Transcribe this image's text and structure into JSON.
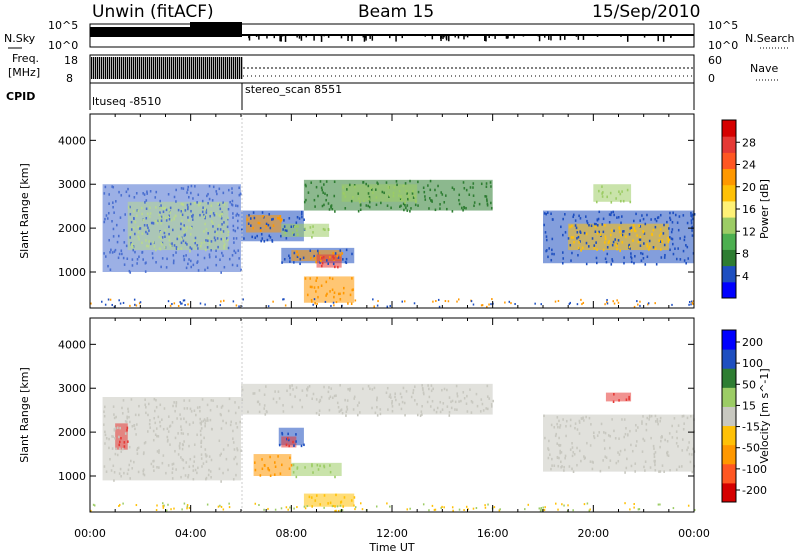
{
  "header": {
    "station": "Unwin (fitACF)",
    "beam": "Beam 15",
    "date": "15/Sep/2010"
  },
  "side_labels": {
    "nsky": "N.Sky",
    "nsearch": "N.Search",
    "freq_line1": "Freq.",
    "freq_line2": "[MHz]",
    "nave": "Nave",
    "cpid": "CPID"
  },
  "noise_axis": {
    "left_ticks": [
      "10^5",
      "10^0"
    ],
    "right_ticks": [
      "10^5",
      "10^0"
    ]
  },
  "freq_axis": {
    "left_ticks": [
      "18",
      "8"
    ],
    "right_ticks": [
      "60",
      "0"
    ]
  },
  "cpid_segments": [
    {
      "label": "ltuseq -8510",
      "start_hour": 0,
      "end_hour": 6
    },
    {
      "label": "stereo_scan 8551",
      "start_hour": 6,
      "end_hour": 24
    }
  ],
  "time_axis": {
    "label": "Time UT",
    "ticks": [
      "00:00",
      "04:00",
      "08:00",
      "12:00",
      "16:00",
      "20:00",
      "00:00"
    ],
    "tick_hours": [
      0,
      4,
      8,
      12,
      16,
      20,
      24
    ]
  },
  "range_axis": {
    "label": "Slant Range [km]",
    "ticks": [
      "1000",
      "2000",
      "3000",
      "4000"
    ],
    "tick_values": [
      1000,
      2000,
      3000,
      4000
    ],
    "range": [
      180,
      4600
    ]
  },
  "chart_data": [
    {
      "type": "heatmap",
      "name": "power",
      "colorbar_label": "Power [dB]",
      "colorbar_ticks": [
        "28",
        "24",
        "20",
        "16",
        "12",
        "8",
        "4"
      ],
      "colorbar_values": [
        28,
        24,
        20,
        16,
        12,
        8,
        4
      ],
      "colorbar_colors": [
        "#0000ff",
        "#1e4fc0",
        "#2e7d32",
        "#4caf50",
        "#9ccc65",
        "#fff176",
        "#ffc107",
        "#ff9800",
        "#ff5722",
        "#e53935",
        "#d50000"
      ],
      "xlim": [
        0,
        24
      ],
      "ylim": [
        180,
        4600
      ],
      "regions": [
        {
          "x": [
            0.5,
            6
          ],
          "y": [
            1000,
            3000
          ],
          "color": "#4a6fd0"
        },
        {
          "x": [
            1.5,
            5.5
          ],
          "y": [
            1500,
            2600
          ],
          "color": "#b8d890"
        },
        {
          "x": [
            6,
            8.5
          ],
          "y": [
            1700,
            2400
          ],
          "color": "#1e4fc0"
        },
        {
          "x": [
            6.2,
            7.6
          ],
          "y": [
            1900,
            2300
          ],
          "color": "#ff9800"
        },
        {
          "x": [
            7.6,
            9.5
          ],
          "y": [
            1800,
            2100
          ],
          "color": "#9ccc65"
        },
        {
          "x": [
            7.6,
            10.5
          ],
          "y": [
            1200,
            1550
          ],
          "color": "#1e4fc0"
        },
        {
          "x": [
            8,
            10
          ],
          "y": [
            1250,
            1500
          ],
          "color": "#ff9800"
        },
        {
          "x": [
            9,
            10
          ],
          "y": [
            1100,
            1400
          ],
          "color": "#e53935"
        },
        {
          "x": [
            8.5,
            10.5
          ],
          "y": [
            300,
            900
          ],
          "color": "#ff9800"
        },
        {
          "x": [
            8.5,
            16
          ],
          "y": [
            2400,
            3100
          ],
          "color": "#2e7d32"
        },
        {
          "x": [
            10,
            13
          ],
          "y": [
            2600,
            3000
          ],
          "color": "#9ccc65"
        },
        {
          "x": [
            18,
            24
          ],
          "y": [
            1200,
            2400
          ],
          "color": "#1e4fc0"
        },
        {
          "x": [
            19,
            23
          ],
          "y": [
            1500,
            2100
          ],
          "color": "#ffc107"
        },
        {
          "x": [
            20,
            21.5
          ],
          "y": [
            2600,
            3000
          ],
          "color": "#9ccc65"
        }
      ]
    },
    {
      "type": "heatmap",
      "name": "velocity",
      "colorbar_label": "Velocity [m s^-1]",
      "colorbar_ticks": [
        "200",
        "100",
        "50",
        "15",
        "-15",
        "-50",
        "-100",
        "-200"
      ],
      "colorbar_values": [
        200,
        100,
        50,
        15,
        -15,
        -50,
        -100,
        -200
      ],
      "colorbar_colors": [
        "#d50000",
        "#ff5722",
        "#ff9800",
        "#ffc107",
        "#c8c8c0",
        "#9ccc65",
        "#2e7d32",
        "#1e4fc0",
        "#0000ff"
      ],
      "xlim": [
        0,
        24
      ],
      "ylim": [
        180,
        4600
      ],
      "regions": [
        {
          "x": [
            0.5,
            6
          ],
          "y": [
            900,
            2800
          ],
          "color": "#c8c8c0"
        },
        {
          "x": [
            6,
            16
          ],
          "y": [
            2400,
            3100
          ],
          "color": "#c8c8c0"
        },
        {
          "x": [
            7.5,
            8.5
          ],
          "y": [
            1700,
            2100
          ],
          "color": "#1e4fc0"
        },
        {
          "x": [
            7.6,
            8.2
          ],
          "y": [
            1650,
            1900
          ],
          "color": "#e53935"
        },
        {
          "x": [
            6.5,
            8
          ],
          "y": [
            1000,
            1500
          ],
          "color": "#ff9800"
        },
        {
          "x": [
            8,
            10
          ],
          "y": [
            1000,
            1300
          ],
          "color": "#9ccc65"
        },
        {
          "x": [
            8.5,
            10.5
          ],
          "y": [
            300,
            600
          ],
          "color": "#ffc107"
        },
        {
          "x": [
            18,
            24
          ],
          "y": [
            1100,
            2400
          ],
          "color": "#c8c8c0"
        },
        {
          "x": [
            20.5,
            21.5
          ],
          "y": [
            2700,
            2900
          ],
          "color": "#e53935"
        },
        {
          "x": [
            1,
            1.5
          ],
          "y": [
            1600,
            2200
          ],
          "color": "#e53935"
        }
      ]
    }
  ]
}
